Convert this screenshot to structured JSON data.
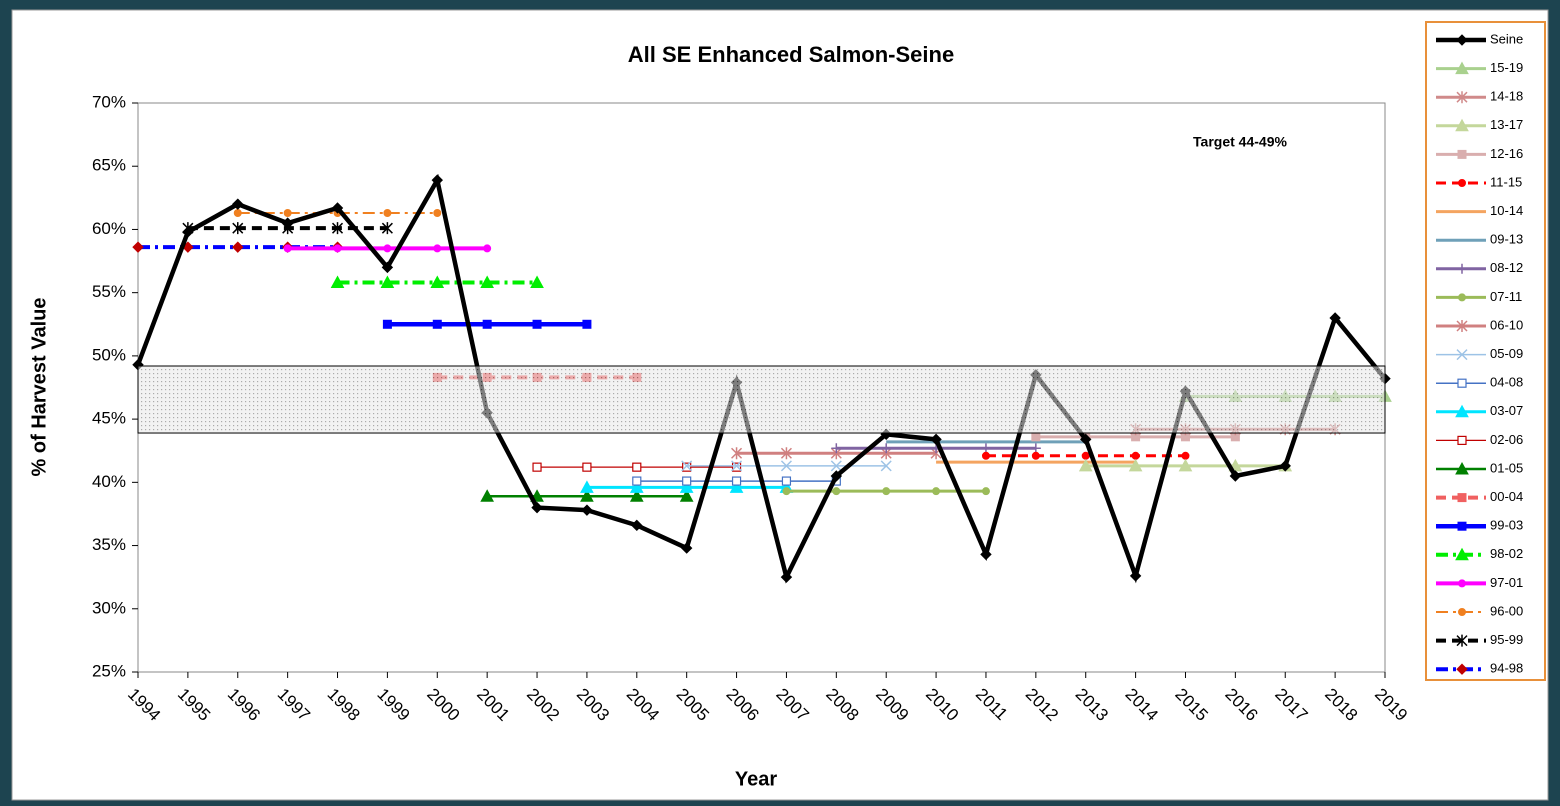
{
  "chart_data": {
    "type": "line",
    "title": "All SE Enhanced Salmon-Seine",
    "x_label": "Year",
    "y_label": "% of Harvest Value",
    "annotation": "Target 44-49%",
    "target_band": [
      43.9,
      49.2
    ],
    "x": [
      1994,
      1995,
      1996,
      1997,
      1998,
      1999,
      2000,
      2001,
      2002,
      2003,
      2004,
      2005,
      2006,
      2007,
      2008,
      2009,
      2010,
      2011,
      2012,
      2013,
      2014,
      2015,
      2016,
      2017,
      2018,
      2019
    ],
    "xlim": [
      1994,
      2019
    ],
    "xticks": [
      1994,
      1995,
      1996,
      1997,
      1998,
      1999,
      2000,
      2001,
      2002,
      2003,
      2004,
      2005,
      2006,
      2007,
      2008,
      2009,
      2010,
      2011,
      2012,
      2013,
      2014,
      2015,
      2016,
      2017,
      2018,
      2019
    ],
    "ylim": [
      25,
      70
    ],
    "yticks": [
      {
        "value": 25,
        "label": "25%"
      },
      {
        "value": 30,
        "label": "30%"
      },
      {
        "value": 35,
        "label": "35%"
      },
      {
        "value": 40,
        "label": "40%"
      },
      {
        "value": 45,
        "label": "45%"
      },
      {
        "value": 50,
        "label": "50%"
      },
      {
        "value": 55,
        "label": "55%"
      },
      {
        "value": 60,
        "label": "60%"
      },
      {
        "value": 65,
        "label": "65%"
      },
      {
        "value": 70,
        "label": "70%"
      }
    ],
    "legend": "right",
    "series": [
      {
        "name": "Seine",
        "color": "#000000",
        "width": 4.5,
        "marker": "diamond",
        "dash": "solid",
        "values": [
          49.3,
          59.8,
          62.0,
          60.5,
          61.7,
          57.0,
          63.9,
          45.5,
          38.0,
          37.8,
          36.6,
          34.8,
          47.9,
          32.5,
          40.5,
          43.8,
          43.4,
          34.3,
          48.5,
          43.4,
          32.6,
          47.2,
          40.5,
          41.3,
          53.0,
          48.2
        ]
      },
      {
        "name": "15-19",
        "color": "#a9d18e",
        "width": 3,
        "marker": "triangle",
        "dash": "solid",
        "values": [
          null,
          null,
          null,
          null,
          null,
          null,
          null,
          null,
          null,
          null,
          null,
          null,
          null,
          null,
          null,
          null,
          null,
          null,
          null,
          null,
          null,
          46.8,
          46.8,
          46.8,
          46.8,
          46.8
        ]
      },
      {
        "name": "14-18",
        "color": "#d08a8a",
        "width": 3,
        "marker": "star",
        "dash": "solid",
        "values": [
          null,
          null,
          null,
          null,
          null,
          null,
          null,
          null,
          null,
          null,
          null,
          null,
          null,
          null,
          null,
          null,
          null,
          null,
          null,
          null,
          44.2,
          44.2,
          44.2,
          44.2,
          44.2,
          null
        ]
      },
      {
        "name": "13-17",
        "color": "#c4d79b",
        "width": 3,
        "marker": "triangle",
        "dash": "solid",
        "values": [
          null,
          null,
          null,
          null,
          null,
          null,
          null,
          null,
          null,
          null,
          null,
          null,
          null,
          null,
          null,
          null,
          null,
          null,
          null,
          41.3,
          41.3,
          41.3,
          41.3,
          41.3,
          null,
          null
        ]
      },
      {
        "name": "12-16",
        "color": "#d9aeae",
        "width": 3,
        "marker": "square",
        "dash": "solid",
        "values": [
          null,
          null,
          null,
          null,
          null,
          null,
          null,
          null,
          null,
          null,
          null,
          null,
          null,
          null,
          null,
          null,
          null,
          null,
          43.6,
          43.6,
          43.6,
          43.6,
          43.6,
          null,
          null,
          null
        ]
      },
      {
        "name": "11-15",
        "color": "#ff0000",
        "width": 3,
        "marker": "circle",
        "dash": "dash",
        "values": [
          null,
          null,
          null,
          null,
          null,
          null,
          null,
          null,
          null,
          null,
          null,
          null,
          null,
          null,
          null,
          null,
          null,
          42.1,
          42.1,
          42.1,
          42.1,
          42.1,
          null,
          null,
          null,
          null
        ]
      },
      {
        "name": "10-14",
        "color": "#f4a460",
        "width": 3,
        "marker": "none",
        "dash": "solid",
        "values": [
          null,
          null,
          null,
          null,
          null,
          null,
          null,
          null,
          null,
          null,
          null,
          null,
          null,
          null,
          null,
          null,
          41.6,
          41.6,
          41.6,
          41.6,
          41.6,
          null,
          null,
          null,
          null,
          null
        ]
      },
      {
        "name": "09-13",
        "color": "#6fa0b8",
        "width": 3,
        "marker": "none",
        "dash": "solid",
        "values": [
          null,
          null,
          null,
          null,
          null,
          null,
          null,
          null,
          null,
          null,
          null,
          null,
          null,
          null,
          null,
          43.2,
          43.2,
          43.2,
          43.2,
          43.2,
          null,
          null,
          null,
          null,
          null,
          null
        ]
      },
      {
        "name": "08-12",
        "color": "#8064a2",
        "width": 3,
        "marker": "plus",
        "dash": "solid",
        "values": [
          null,
          null,
          null,
          null,
          null,
          null,
          null,
          null,
          null,
          null,
          null,
          null,
          null,
          null,
          42.7,
          42.7,
          42.7,
          42.7,
          42.7,
          null,
          null,
          null,
          null,
          null,
          null,
          null
        ]
      },
      {
        "name": "07-11",
        "color": "#9bbb59",
        "width": 3,
        "marker": "circle",
        "dash": "solid",
        "values": [
          null,
          null,
          null,
          null,
          null,
          null,
          null,
          null,
          null,
          null,
          null,
          null,
          null,
          39.3,
          39.3,
          39.3,
          39.3,
          39.3,
          null,
          null,
          null,
          null,
          null,
          null,
          null,
          null
        ]
      },
      {
        "name": "06-10",
        "color": "#d08080",
        "width": 3,
        "marker": "star",
        "dash": "solid",
        "values": [
          null,
          null,
          null,
          null,
          null,
          null,
          null,
          null,
          null,
          null,
          null,
          null,
          42.3,
          42.3,
          42.3,
          42.3,
          42.3,
          null,
          null,
          null,
          null,
          null,
          null,
          null,
          null,
          null
        ]
      },
      {
        "name": "05-09",
        "color": "#9dc3e6",
        "width": 1.5,
        "marker": "x",
        "dash": "solid",
        "values": [
          null,
          null,
          null,
          null,
          null,
          null,
          null,
          null,
          null,
          null,
          null,
          41.3,
          41.3,
          41.3,
          41.3,
          41.3,
          null,
          null,
          null,
          null,
          null,
          null,
          null,
          null,
          null,
          null
        ]
      },
      {
        "name": "04-08",
        "color": "#4472c4",
        "width": 1.5,
        "marker": "square-open",
        "dash": "solid",
        "values": [
          null,
          null,
          null,
          null,
          null,
          null,
          null,
          null,
          null,
          null,
          40.1,
          40.1,
          40.1,
          40.1,
          40.1,
          null,
          null,
          null,
          null,
          null,
          null,
          null,
          null,
          null,
          null,
          null
        ]
      },
      {
        "name": "03-07",
        "color": "#00e5ff",
        "width": 3,
        "marker": "triangle",
        "dash": "solid",
        "values": [
          null,
          null,
          null,
          null,
          null,
          null,
          null,
          null,
          null,
          39.6,
          39.6,
          39.6,
          39.6,
          39.6,
          null,
          null,
          null,
          null,
          null,
          null,
          null,
          null,
          null,
          null,
          null,
          null
        ]
      },
      {
        "name": "02-06",
        "color": "#c00000",
        "width": 1.2,
        "marker": "square-open",
        "dash": "solid",
        "values": [
          null,
          null,
          null,
          null,
          null,
          null,
          null,
          null,
          41.2,
          41.2,
          41.2,
          41.2,
          41.2,
          null,
          null,
          null,
          null,
          null,
          null,
          null,
          null,
          null,
          null,
          null,
          null,
          null
        ]
      },
      {
        "name": "01-05",
        "color": "#008000",
        "width": 2.5,
        "marker": "triangle",
        "dash": "solid",
        "values": [
          null,
          null,
          null,
          null,
          null,
          null,
          null,
          38.9,
          38.9,
          38.9,
          38.9,
          38.9,
          null,
          null,
          null,
          null,
          null,
          null,
          null,
          null,
          null,
          null,
          null,
          null,
          null,
          null
        ]
      },
      {
        "name": "00-04",
        "color": "#f06060",
        "width": 4,
        "marker": "square",
        "dash": "dash",
        "values": [
          null,
          null,
          null,
          null,
          null,
          null,
          48.3,
          48.3,
          48.3,
          48.3,
          48.3,
          null,
          null,
          null,
          null,
          null,
          null,
          null,
          null,
          null,
          null,
          null,
          null,
          null,
          null,
          null
        ]
      },
      {
        "name": "99-03",
        "color": "#0000ff",
        "width": 4.5,
        "marker": "square",
        "dash": "solid",
        "values": [
          null,
          null,
          null,
          null,
          null,
          52.5,
          52.5,
          52.5,
          52.5,
          52.5,
          null,
          null,
          null,
          null,
          null,
          null,
          null,
          null,
          null,
          null,
          null,
          null,
          null,
          null,
          null,
          null
        ]
      },
      {
        "name": "98-02",
        "color": "#00ee00",
        "width": 4,
        "marker": "triangle",
        "dash": "dashdot",
        "values": [
          null,
          null,
          null,
          null,
          55.8,
          55.8,
          55.8,
          55.8,
          55.8,
          null,
          null,
          null,
          null,
          null,
          null,
          null,
          null,
          null,
          null,
          null,
          null,
          null,
          null,
          null,
          null,
          null
        ]
      },
      {
        "name": "97-01",
        "color": "#ff00ff",
        "width": 4,
        "marker": "circle",
        "dash": "solid",
        "values": [
          null,
          null,
          null,
          58.5,
          58.5,
          58.5,
          58.5,
          58.5,
          null,
          null,
          null,
          null,
          null,
          null,
          null,
          null,
          null,
          null,
          null,
          null,
          null,
          null,
          null,
          null,
          null,
          null
        ]
      },
      {
        "name": "96-00",
        "color": "#f08020",
        "width": 2,
        "marker": "circle",
        "dash": "dashdot",
        "values": [
          null,
          null,
          61.3,
          61.3,
          61.3,
          61.3,
          61.3,
          null,
          null,
          null,
          null,
          null,
          null,
          null,
          null,
          null,
          null,
          null,
          null,
          null,
          null,
          null,
          null,
          null,
          null,
          null
        ]
      },
      {
        "name": "95-99",
        "color": "#000000",
        "width": 4,
        "marker": "star",
        "dash": "dash",
        "values": [
          null,
          60.1,
          60.1,
          60.1,
          60.1,
          60.1,
          null,
          null,
          null,
          null,
          null,
          null,
          null,
          null,
          null,
          null,
          null,
          null,
          null,
          null,
          null,
          null,
          null,
          null,
          null,
          null
        ]
      },
      {
        "name": "94-98",
        "color": "#0000ff",
        "width": 4,
        "marker": "diamond",
        "marker_color": "#c00000",
        "dash": "dashdot",
        "values": [
          58.6,
          58.6,
          58.6,
          58.6,
          58.6,
          null,
          null,
          null,
          null,
          null,
          null,
          null,
          null,
          null,
          null,
          null,
          null,
          null,
          null,
          null,
          null,
          null,
          null,
          null,
          null,
          null
        ]
      }
    ]
  }
}
